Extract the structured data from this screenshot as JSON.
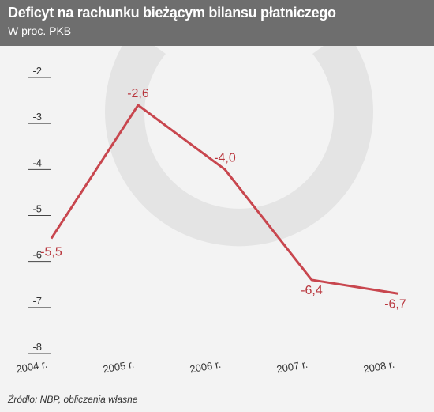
{
  "title": "Deficyt na rachunku bieżącym bilansu płatniczego",
  "subtitle": "W proc. PKB",
  "source": "Źródło: NBP, obliczenia własne",
  "colors": {
    "header_bg": "#6e6e6e",
    "background": "#f3f3f3",
    "line": "#c8464e",
    "labels": "#b8353c",
    "axis_text": "#333333",
    "gridline": "#444444",
    "watermark": "#e4e4e4"
  },
  "chart_data": {
    "type": "line",
    "title": "Deficyt na rachunku bieżącym bilansu płatniczego",
    "subtitle": "W proc. PKB",
    "categories": [
      "2004 r.",
      "2005 r.",
      "2006 r.",
      "2007 r.",
      "2008 r."
    ],
    "series": [
      {
        "values": [
          -5.5,
          -2.6,
          -4.0,
          -6.4,
          -6.7
        ],
        "labels": [
          "-5,5",
          "-2,6",
          "-4,0",
          "-6,4",
          "-6,7"
        ]
      }
    ],
    "y_ticks": [
      -2,
      -3,
      -4,
      -5,
      -6,
      -7,
      -8
    ],
    "y_tick_labels": [
      "-2",
      "-3",
      "-4",
      "-5",
      "-6",
      "-7",
      "-8"
    ],
    "ylim": [
      -8,
      -2
    ],
    "grid": "horizontal tick marks only",
    "legend": "none",
    "xlabel": "",
    "ylabel": ""
  }
}
